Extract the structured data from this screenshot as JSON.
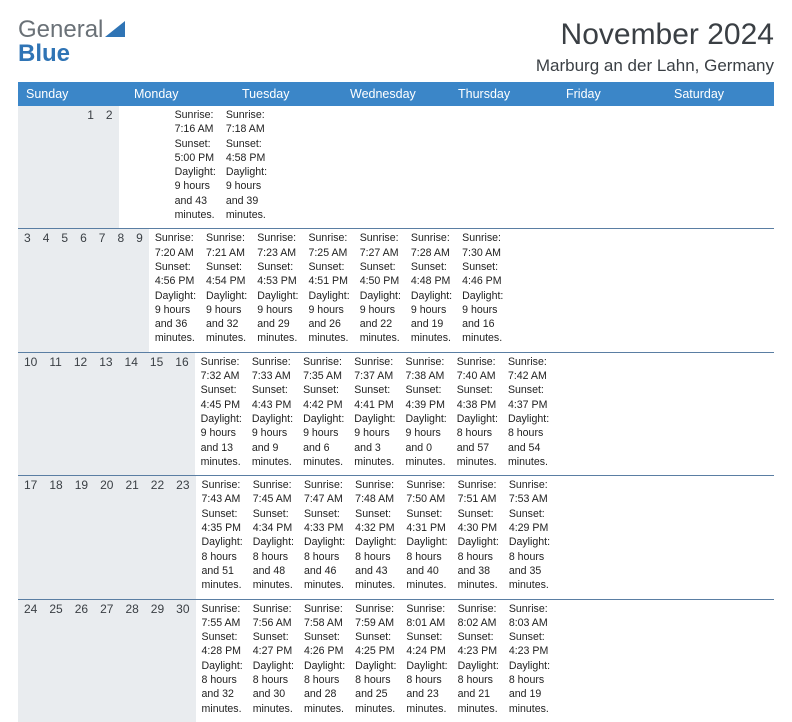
{
  "logo": {
    "text_general": "General",
    "text_blue": "Blue",
    "accent_color": "#2f74b5",
    "gray_color": "#6a7177"
  },
  "header": {
    "title": "November 2024",
    "location": "Marburg an der Lahn, Germany",
    "title_fontsize": 30,
    "location_fontsize": 17
  },
  "calendar": {
    "type": "table",
    "day_names": [
      "Sunday",
      "Monday",
      "Tuesday",
      "Wednesday",
      "Thursday",
      "Friday",
      "Saturday"
    ],
    "header_bg": "#3b86c8",
    "header_text_color": "#ffffff",
    "daynum_bg": "#e9ecef",
    "week_divider_color": "#5a7ea3",
    "body_text_color": "#222222",
    "cell_fontsize": 10.6,
    "daynum_fontsize": 12,
    "weeks": [
      [
        {
          "day": "",
          "sunrise": "",
          "sunset": "",
          "daylight": ""
        },
        {
          "day": "",
          "sunrise": "",
          "sunset": "",
          "daylight": ""
        },
        {
          "day": "",
          "sunrise": "",
          "sunset": "",
          "daylight": ""
        },
        {
          "day": "",
          "sunrise": "",
          "sunset": "",
          "daylight": ""
        },
        {
          "day": "",
          "sunrise": "",
          "sunset": "",
          "daylight": ""
        },
        {
          "day": "1",
          "sunrise": "Sunrise: 7:16 AM",
          "sunset": "Sunset: 5:00 PM",
          "daylight": "Daylight: 9 hours and 43 minutes."
        },
        {
          "day": "2",
          "sunrise": "Sunrise: 7:18 AM",
          "sunset": "Sunset: 4:58 PM",
          "daylight": "Daylight: 9 hours and 39 minutes."
        }
      ],
      [
        {
          "day": "3",
          "sunrise": "Sunrise: 7:20 AM",
          "sunset": "Sunset: 4:56 PM",
          "daylight": "Daylight: 9 hours and 36 minutes."
        },
        {
          "day": "4",
          "sunrise": "Sunrise: 7:21 AM",
          "sunset": "Sunset: 4:54 PM",
          "daylight": "Daylight: 9 hours and 32 minutes."
        },
        {
          "day": "5",
          "sunrise": "Sunrise: 7:23 AM",
          "sunset": "Sunset: 4:53 PM",
          "daylight": "Daylight: 9 hours and 29 minutes."
        },
        {
          "day": "6",
          "sunrise": "Sunrise: 7:25 AM",
          "sunset": "Sunset: 4:51 PM",
          "daylight": "Daylight: 9 hours and 26 minutes."
        },
        {
          "day": "7",
          "sunrise": "Sunrise: 7:27 AM",
          "sunset": "Sunset: 4:50 PM",
          "daylight": "Daylight: 9 hours and 22 minutes."
        },
        {
          "day": "8",
          "sunrise": "Sunrise: 7:28 AM",
          "sunset": "Sunset: 4:48 PM",
          "daylight": "Daylight: 9 hours and 19 minutes."
        },
        {
          "day": "9",
          "sunrise": "Sunrise: 7:30 AM",
          "sunset": "Sunset: 4:46 PM",
          "daylight": "Daylight: 9 hours and 16 minutes."
        }
      ],
      [
        {
          "day": "10",
          "sunrise": "Sunrise: 7:32 AM",
          "sunset": "Sunset: 4:45 PM",
          "daylight": "Daylight: 9 hours and 13 minutes."
        },
        {
          "day": "11",
          "sunrise": "Sunrise: 7:33 AM",
          "sunset": "Sunset: 4:43 PM",
          "daylight": "Daylight: 9 hours and 9 minutes."
        },
        {
          "day": "12",
          "sunrise": "Sunrise: 7:35 AM",
          "sunset": "Sunset: 4:42 PM",
          "daylight": "Daylight: 9 hours and 6 minutes."
        },
        {
          "day": "13",
          "sunrise": "Sunrise: 7:37 AM",
          "sunset": "Sunset: 4:41 PM",
          "daylight": "Daylight: 9 hours and 3 minutes."
        },
        {
          "day": "14",
          "sunrise": "Sunrise: 7:38 AM",
          "sunset": "Sunset: 4:39 PM",
          "daylight": "Daylight: 9 hours and 0 minutes."
        },
        {
          "day": "15",
          "sunrise": "Sunrise: 7:40 AM",
          "sunset": "Sunset: 4:38 PM",
          "daylight": "Daylight: 8 hours and 57 minutes."
        },
        {
          "day": "16",
          "sunrise": "Sunrise: 7:42 AM",
          "sunset": "Sunset: 4:37 PM",
          "daylight": "Daylight: 8 hours and 54 minutes."
        }
      ],
      [
        {
          "day": "17",
          "sunrise": "Sunrise: 7:43 AM",
          "sunset": "Sunset: 4:35 PM",
          "daylight": "Daylight: 8 hours and 51 minutes."
        },
        {
          "day": "18",
          "sunrise": "Sunrise: 7:45 AM",
          "sunset": "Sunset: 4:34 PM",
          "daylight": "Daylight: 8 hours and 48 minutes."
        },
        {
          "day": "19",
          "sunrise": "Sunrise: 7:47 AM",
          "sunset": "Sunset: 4:33 PM",
          "daylight": "Daylight: 8 hours and 46 minutes."
        },
        {
          "day": "20",
          "sunrise": "Sunrise: 7:48 AM",
          "sunset": "Sunset: 4:32 PM",
          "daylight": "Daylight: 8 hours and 43 minutes."
        },
        {
          "day": "21",
          "sunrise": "Sunrise: 7:50 AM",
          "sunset": "Sunset: 4:31 PM",
          "daylight": "Daylight: 8 hours and 40 minutes."
        },
        {
          "day": "22",
          "sunrise": "Sunrise: 7:51 AM",
          "sunset": "Sunset: 4:30 PM",
          "daylight": "Daylight: 8 hours and 38 minutes."
        },
        {
          "day": "23",
          "sunrise": "Sunrise: 7:53 AM",
          "sunset": "Sunset: 4:29 PM",
          "daylight": "Daylight: 8 hours and 35 minutes."
        }
      ],
      [
        {
          "day": "24",
          "sunrise": "Sunrise: 7:55 AM",
          "sunset": "Sunset: 4:28 PM",
          "daylight": "Daylight: 8 hours and 32 minutes."
        },
        {
          "day": "25",
          "sunrise": "Sunrise: 7:56 AM",
          "sunset": "Sunset: 4:27 PM",
          "daylight": "Daylight: 8 hours and 30 minutes."
        },
        {
          "day": "26",
          "sunrise": "Sunrise: 7:58 AM",
          "sunset": "Sunset: 4:26 PM",
          "daylight": "Daylight: 8 hours and 28 minutes."
        },
        {
          "day": "27",
          "sunrise": "Sunrise: 7:59 AM",
          "sunset": "Sunset: 4:25 PM",
          "daylight": "Daylight: 8 hours and 25 minutes."
        },
        {
          "day": "28",
          "sunrise": "Sunrise: 8:01 AM",
          "sunset": "Sunset: 4:24 PM",
          "daylight": "Daylight: 8 hours and 23 minutes."
        },
        {
          "day": "29",
          "sunrise": "Sunrise: 8:02 AM",
          "sunset": "Sunset: 4:23 PM",
          "daylight": "Daylight: 8 hours and 21 minutes."
        },
        {
          "day": "30",
          "sunrise": "Sunrise: 8:03 AM",
          "sunset": "Sunset: 4:23 PM",
          "daylight": "Daylight: 8 hours and 19 minutes."
        }
      ]
    ]
  }
}
